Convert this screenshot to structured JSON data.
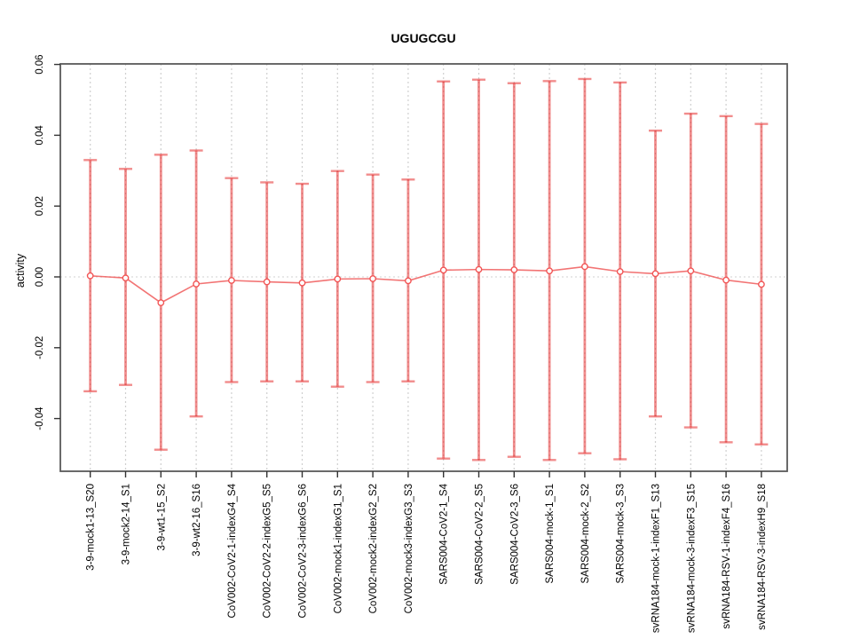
{
  "chart_data": {
    "type": "line",
    "subtype": "points-with-error-bars",
    "title": "UGUGCGU",
    "xlabel": "",
    "ylabel": "activity",
    "legend": "none",
    "grid": "vertical dotted gridline per category, dotted horizontal line at y=0",
    "ylim": [
      -0.055,
      0.06
    ],
    "ytick_values": [
      0.06,
      0.04,
      0.02,
      0.0,
      -0.02,
      -0.04
    ],
    "ytick_labels": [
      "0.06",
      "0.04",
      "0.02",
      "0.00",
      "-0.02",
      "-0.04"
    ],
    "categories": [
      "3-9-mock1-13_S20",
      "3-9-mock2-14_S1",
      "3-9-wt1-15_S2",
      "3-9-wt2-16_S16",
      "CoV002-CoV2-1-indexG4_S4",
      "CoV002-CoV2-2-indexG5_S5",
      "CoV002-CoV2-3-indexG6_S6",
      "CoV002-mock1-indexG1_S1",
      "CoV002-mock2-indexG2_S2",
      "CoV002-mock3-indexG3_S3",
      "SARS004-CoV2-1_S4",
      "SARS004-CoV2-2_S5",
      "SARS004-CoV2-3_S6",
      "SARS004-mock-1_S1",
      "SARS004-mock-2_S2",
      "SARS004-mock-3_S3",
      "svRNA184-mock-1-indexF1_S13",
      "svRNA184-mock-3-indexF3_S15",
      "svRNA184-RSV-1-indexF4_S16",
      "svRNA184-RSV-3-indexH9_S18"
    ],
    "series": [
      {
        "name": "mean",
        "values": [
          0.0003,
          -0.0003,
          -0.0073,
          -0.002,
          -0.001,
          -0.0014,
          -0.0017,
          -0.0006,
          -0.0005,
          -0.0011,
          0.0019,
          0.0021,
          0.002,
          0.0017,
          0.0029,
          0.0015,
          0.0009,
          0.0017,
          -0.0009,
          -0.0021
        ]
      },
      {
        "name": "upper",
        "values": [
          0.033,
          0.0305,
          0.0345,
          0.0357,
          0.0279,
          0.0267,
          0.0263,
          0.0299,
          0.0289,
          0.0275,
          0.0552,
          0.0557,
          0.0547,
          0.0553,
          0.0559,
          0.0549,
          0.0413,
          0.0461,
          0.0454,
          0.0432
        ]
      },
      {
        "name": "lower",
        "values": [
          -0.0323,
          -0.0305,
          -0.0488,
          -0.0394,
          -0.0297,
          -0.0295,
          -0.0295,
          -0.031,
          -0.0297,
          -0.0295,
          -0.0513,
          -0.0517,
          -0.0508,
          -0.0517,
          -0.0498,
          -0.0515,
          -0.0394,
          -0.0425,
          -0.0467,
          -0.0473
        ]
      }
    ]
  },
  "colors": {
    "error_bar": "rgba(230,45,45,0.55)",
    "point_stroke": "#f25555",
    "series_line": "rgba(238,70,70,0.75)",
    "gridline": "#cfcfcf",
    "zero_line": "#d9d9d9",
    "box": "#5a5a5a",
    "tick": "#333333"
  }
}
